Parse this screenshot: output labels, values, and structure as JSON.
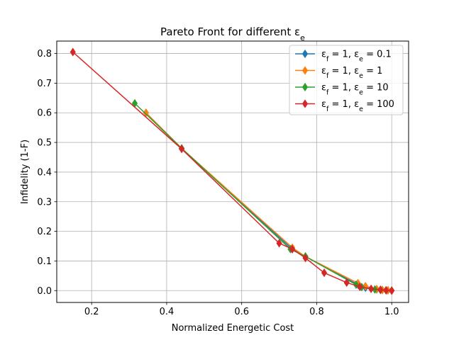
{
  "chart_data": {
    "type": "line",
    "title": "Pareto Front for different ε",
    "title_sub": "e",
    "xlabel": "Normalized Energetic Cost",
    "ylabel": "Infidelity (1-F)",
    "xlim": [
      0.107,
      1.045
    ],
    "ylim": [
      -0.04,
      0.842
    ],
    "xticks": [
      0.2,
      0.4,
      0.6,
      0.8,
      1.0
    ],
    "xtick_labels": [
      "0.2",
      "0.4",
      "0.6",
      "0.8",
      "1.0"
    ],
    "yticks": [
      0.0,
      0.1,
      0.2,
      0.3,
      0.4,
      0.5,
      0.6,
      0.7,
      0.8
    ],
    "ytick_labels": [
      "0.0",
      "0.1",
      "0.2",
      "0.3",
      "0.4",
      "0.5",
      "0.6",
      "0.7",
      "0.8"
    ],
    "grid": true,
    "legend_position": "top-right",
    "marker": "thin-diamond",
    "series": [
      {
        "name_prefix": "ε",
        "name_prefix_sub": "f",
        "name_mid": " = 1, ε",
        "name_mid_sub": "e",
        "name_suffix": " = 0.1",
        "color": "#1f77b4",
        "x": [
          0.345,
          0.44,
          0.735,
          0.77,
          0.91,
          0.93,
          0.96,
          0.975,
          0.99,
          1.0
        ],
        "y": [
          0.6,
          0.48,
          0.14,
          0.115,
          0.02,
          0.01,
          0.004,
          0.002,
          0.001,
          0.0
        ]
      },
      {
        "name_prefix": "ε",
        "name_prefix_sub": "f",
        "name_mid": " = 1, ε",
        "name_mid_sub": "e",
        "name_suffix": " = 1",
        "color": "#ff7f0e",
        "x": [
          0.345,
          0.44,
          0.735,
          0.77,
          0.91,
          0.93,
          0.96,
          0.975,
          0.99,
          1.0
        ],
        "y": [
          0.6,
          0.48,
          0.145,
          0.115,
          0.025,
          0.015,
          0.005,
          0.002,
          0.001,
          0.0
        ]
      },
      {
        "name_prefix": "ε",
        "name_prefix_sub": "f",
        "name_mid": " = 1, ε",
        "name_mid_sub": "e",
        "name_suffix": " = 10",
        "color": "#2ca02c",
        "x": [
          0.315,
          0.44,
          0.73,
          0.77,
          0.905,
          0.92,
          0.955,
          0.97,
          0.985,
          1.0
        ],
        "y": [
          0.632,
          0.48,
          0.14,
          0.115,
          0.02,
          0.012,
          0.004,
          0.002,
          0.001,
          0.0
        ]
      },
      {
        "name_prefix": "ε",
        "name_prefix_sub": "f",
        "name_mid": " = 1, ε",
        "name_mid_sub": "e",
        "name_suffix": " = 100",
        "color": "#d62728",
        "x": [
          0.15,
          0.44,
          0.7,
          0.735,
          0.77,
          0.82,
          0.88,
          0.915,
          0.945,
          0.97,
          0.985,
          1.0
        ],
        "y": [
          0.805,
          0.478,
          0.16,
          0.14,
          0.11,
          0.06,
          0.027,
          0.013,
          0.006,
          0.003,
          0.001,
          0.0
        ]
      }
    ]
  }
}
